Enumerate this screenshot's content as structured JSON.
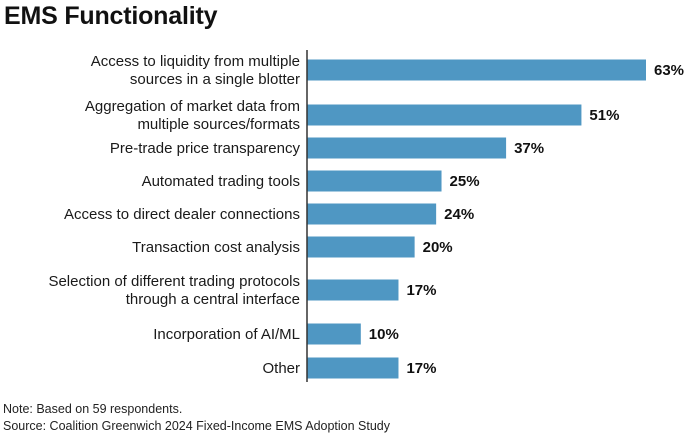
{
  "chart_data": {
    "type": "bar",
    "orientation": "horizontal",
    "title": "EMS Functionality",
    "categories": [
      [
        "Access to liquidity from multiple",
        "sources in a single blotter"
      ],
      [
        "Aggregation of market data from",
        "multiple sources/formats"
      ],
      [
        "Pre-trade price transparency"
      ],
      [
        "Automated trading tools"
      ],
      [
        "Access to direct dealer connections"
      ],
      [
        "Transaction cost analysis"
      ],
      [
        "Selection of different trading protocols",
        "through a central interface"
      ],
      [
        "Incorporation of AI/ML"
      ],
      [
        "Other"
      ]
    ],
    "values": [
      63,
      51,
      37,
      25,
      24,
      20,
      17,
      10,
      17
    ],
    "value_labels": [
      "63%",
      "51%",
      "37%",
      "25%",
      "24%",
      "20%",
      "17%",
      "10%",
      "17%"
    ],
    "unit": "%",
    "xlim": [
      0,
      63
    ],
    "xlabel": "",
    "ylabel": "",
    "grid": false,
    "legend": "none",
    "bar_color": "#4f97c3",
    "axis_color": "#333333"
  },
  "footnotes": {
    "note": "Note: Based on 59 respondents.",
    "source": "Source: Coalition Greenwich 2024 Fixed-Income EMS Adoption Study"
  }
}
